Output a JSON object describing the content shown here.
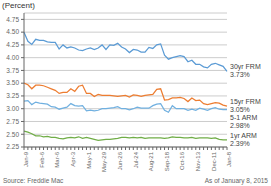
{
  "chart_data": {
    "type": "line",
    "ylabel": "(Percent)",
    "categories": [
      "Jan-9",
      null,
      null,
      null,
      "Feb-6",
      null,
      null,
      null,
      "Mar-6",
      null,
      null,
      null,
      "Apr-3",
      null,
      null,
      null,
      "May-1",
      null,
      null,
      null,
      "May-29",
      null,
      null,
      null,
      "Jun-26",
      null,
      null,
      null,
      "Jul-24",
      null,
      null,
      null,
      "Aug-21",
      null,
      null,
      null,
      "Sep-18",
      null,
      null,
      null,
      "Oct-16",
      null,
      null,
      null,
      "Nov-13",
      null,
      null,
      null,
      "Dec-11",
      null,
      null,
      null,
      "Jan-8"
    ],
    "series": [
      {
        "name": "30yr FRM",
        "color": "#5b9bd5",
        "values": [
          4.5,
          4.32,
          4.26,
          4.36,
          4.34,
          4.34,
          4.31,
          4.3,
          4.3,
          4.17,
          4.25,
          4.19,
          4.21,
          4.19,
          4.15,
          4.14,
          4.17,
          4.19,
          4.16,
          4.19,
          4.25,
          4.16,
          4.25,
          4.24,
          4.28,
          4.21,
          4.17,
          4.1,
          4.16,
          4.15,
          4.11,
          4.11,
          4.2,
          4.18,
          4.25,
          4.27,
          4.05,
          3.97,
          4.0,
          4.02,
          4.04,
          4.02,
          3.92,
          3.95,
          3.87,
          3.87,
          3.82,
          3.8,
          3.87,
          3.89,
          3.86,
          3.83,
          3.73
        ]
      },
      {
        "name": "15yr FRM",
        "color": "#ed7d31",
        "values": [
          3.5,
          3.47,
          3.39,
          3.46,
          3.46,
          3.45,
          3.42,
          3.39,
          3.36,
          3.3,
          3.32,
          3.32,
          3.39,
          3.34,
          3.44,
          3.46,
          3.3,
          3.3,
          3.24,
          3.28,
          3.26,
          3.26,
          3.26,
          3.25,
          3.24,
          3.25,
          3.26,
          3.23,
          3.27,
          3.26,
          3.24,
          3.26,
          3.27,
          3.28,
          3.38,
          3.39,
          3.17,
          3.18,
          3.21,
          3.21,
          3.22,
          3.2,
          3.14,
          3.21,
          3.16,
          3.17,
          3.1,
          3.08,
          3.1,
          3.12,
          3.11,
          3.07,
          3.05
        ]
      },
      {
        "name": "5-1 ARM",
        "color": "#70b0e0",
        "values": [
          3.15,
          3.16,
          3.08,
          3.13,
          3.11,
          3.1,
          3.09,
          3.04,
          3.03,
          2.99,
          3.01,
          3.03,
          3.1,
          3.06,
          3.05,
          3.06,
          2.96,
          2.97,
          2.96,
          2.97,
          3.0,
          3.0,
          3.01,
          3.02,
          3.04,
          3.0,
          3.0,
          2.98,
          3.0,
          3.03,
          3.01,
          3.01,
          3.01,
          3.06,
          3.09,
          3.1,
          2.97,
          2.93,
          3.06,
          3.0,
          3.0,
          3.0,
          2.97,
          2.99,
          2.97,
          3.01,
          2.99,
          2.97,
          3.0,
          3.02,
          2.99,
          2.98,
          2.98
        ]
      },
      {
        "name": "1yr ARM",
        "color": "#70ad47",
        "values": [
          2.56,
          2.54,
          2.51,
          2.47,
          2.47,
          2.45,
          2.46,
          2.44,
          2.44,
          2.42,
          2.41,
          2.43,
          2.44,
          2.43,
          2.45,
          2.42,
          2.44,
          2.42,
          2.4,
          2.38,
          2.39,
          2.4,
          2.4,
          2.41,
          2.42,
          2.44,
          2.44,
          2.43,
          2.44,
          2.43,
          2.44,
          2.42,
          2.43,
          2.43,
          2.43,
          2.43,
          2.42,
          2.43,
          2.45,
          2.44,
          2.44,
          2.43,
          2.43,
          2.44,
          2.42,
          2.43,
          2.43,
          2.43,
          2.42,
          2.43,
          2.4,
          2.39,
          2.39
        ]
      }
    ],
    "ylim": [
      2.25,
      4.875
    ],
    "yticks": [
      2.25,
      {
        "value": 2.5,
        "label": "2.50"
      },
      2.75,
      {
        "value": 3,
        "label": "3.00"
      },
      3.25,
      {
        "value": 3.5,
        "label": "3.50"
      },
      3.75,
      {
        "value": 4,
        "label": "4.00"
      },
      4.25,
      {
        "value": 4.5,
        "label": "4.50"
      },
      4.75
    ],
    "grid": true,
    "annotations": [
      {
        "series": "30yr FRM",
        "text": "3.73%"
      },
      {
        "series": "15yr FRM",
        "text": "3.05%"
      },
      {
        "series": "5-1 ARM",
        "text": "2.98%"
      },
      {
        "series": "1yr ARM",
        "text": "2.39%"
      },
      {
        "text": "Source: Freddie Mac"
      },
      {
        "text": "As of January 8, 2015"
      }
    ]
  }
}
